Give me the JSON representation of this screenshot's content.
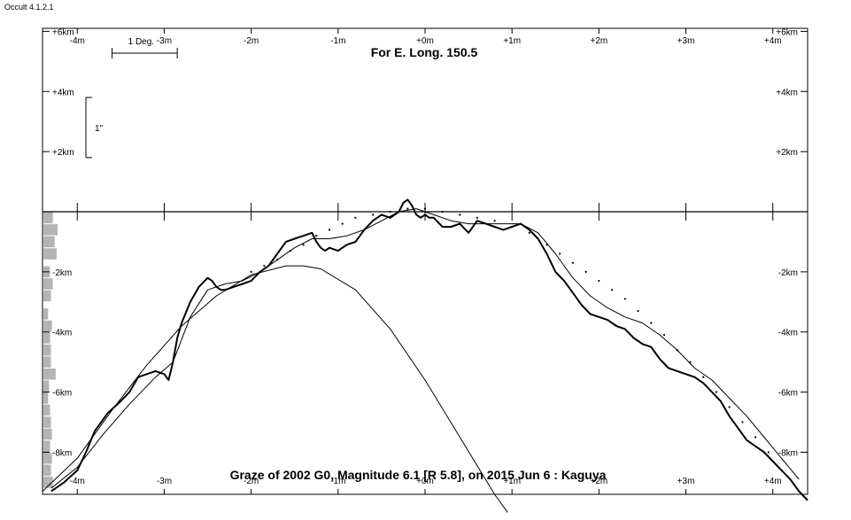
{
  "app": {
    "title": "Occult 4.1.2.1"
  },
  "chart_data": {
    "type": "line",
    "title": "For E. Long. 150.5",
    "caption": "Graze of  2002 G0,  Magnitude 6.1 [R 5.8],  on 2015 Jun  6  :  Kaguya",
    "xlim": [
      -4.4,
      4.4
    ],
    "ylim": [
      -9.4,
      6.1
    ],
    "x_unit": "m",
    "y_unit": "km",
    "x_ticks": [
      "-4m",
      "-3m",
      "-2m",
      "-1m",
      "+0m",
      "+1m",
      "+2m",
      "+3m",
      "+4m"
    ],
    "x_tick_values": [
      -4,
      -3,
      -2,
      -1,
      0,
      1,
      2,
      3,
      4
    ],
    "y_ticks": [
      "+6km",
      "+4km",
      "+2km",
      "-2km",
      "-4km",
      "-6km",
      "-8km"
    ],
    "y_tick_values": [
      6,
      4,
      2,
      -2,
      -4,
      -6,
      -8
    ],
    "scale_bar_label": "1 Deg.",
    "scale_bar_x": [
      -3.6,
      -2.85
    ],
    "vertical_scale_label": "1\"",
    "vertical_scale_y": [
      1.8,
      3.8
    ],
    "series": [
      {
        "style": "profile",
        "x": [
          -4.3,
          -4.15,
          -4.0,
          -3.9,
          -3.8,
          -3.65,
          -3.5,
          -3.4,
          -3.3,
          -3.2,
          -3.1,
          -3.0,
          -2.95,
          -2.9,
          -2.85,
          -2.8,
          -2.7,
          -2.6,
          -2.5,
          -2.45,
          -2.4,
          -2.35,
          -2.3,
          -2.2,
          -2.1,
          -2.0,
          -1.9,
          -1.8,
          -1.7,
          -1.6,
          -1.5,
          -1.4,
          -1.3,
          -1.25,
          -1.2,
          -1.15,
          -1.1,
          -1.0,
          -0.9,
          -0.8,
          -0.7,
          -0.6,
          -0.5,
          -0.4,
          -0.3,
          -0.25,
          -0.2,
          -0.15,
          -0.1,
          -0.05,
          0.0,
          0.05,
          0.1,
          0.2,
          0.3,
          0.4,
          0.5,
          0.6,
          0.7,
          0.8,
          0.9,
          1.0,
          1.1,
          1.2,
          1.3,
          1.4,
          1.5,
          1.6,
          1.7,
          1.8,
          1.9,
          2.0,
          2.1,
          2.2,
          2.3,
          2.4,
          2.5,
          2.6,
          2.65,
          2.7,
          2.8,
          2.9,
          3.0,
          3.1,
          3.2,
          3.3,
          3.4,
          3.5,
          3.6,
          3.7,
          3.8,
          3.9,
          4.0,
          4.1,
          4.2,
          4.3,
          4.4
        ],
        "y": [
          -9.3,
          -9.0,
          -8.6,
          -8.0,
          -7.3,
          -6.7,
          -6.3,
          -6.0,
          -5.5,
          -5.4,
          -5.3,
          -5.4,
          -5.6,
          -5.0,
          -4.2,
          -3.7,
          -3.0,
          -2.5,
          -2.2,
          -2.3,
          -2.5,
          -2.6,
          -2.6,
          -2.5,
          -2.4,
          -2.3,
          -2.0,
          -1.8,
          -1.4,
          -1.0,
          -0.9,
          -0.8,
          -0.7,
          -1.0,
          -1.2,
          -1.3,
          -1.2,
          -1.3,
          -1.1,
          -1.0,
          -0.6,
          -0.3,
          -0.1,
          -0.2,
          0.0,
          0.3,
          0.4,
          0.2,
          -0.1,
          -0.2,
          -0.1,
          -0.2,
          -0.2,
          -0.5,
          -0.5,
          -0.4,
          -0.7,
          -0.3,
          -0.4,
          -0.5,
          -0.6,
          -0.5,
          -0.4,
          -0.6,
          -0.9,
          -1.4,
          -2.0,
          -2.3,
          -2.7,
          -3.1,
          -3.4,
          -3.5,
          -3.6,
          -3.8,
          -3.9,
          -4.2,
          -4.4,
          -4.5,
          -4.7,
          -4.9,
          -5.2,
          -5.3,
          -5.4,
          -5.5,
          -5.7,
          -6.0,
          -6.3,
          -6.8,
          -7.2,
          -7.6,
          -7.8,
          -8.0,
          -8.3,
          -8.6,
          -8.9,
          -9.3,
          -9.6
        ]
      },
      {
        "style": "smooth-limb",
        "x": [
          -4.3,
          -4.0,
          -3.7,
          -3.4,
          -3.1,
          -2.9,
          -2.7,
          -2.5,
          -2.3,
          -2.1,
          -1.9,
          -1.7,
          -1.5,
          -1.3,
          -1.1,
          -0.9,
          -0.7,
          -0.5,
          -0.3,
          -0.1,
          0.1,
          0.3,
          0.5,
          0.7,
          0.9,
          1.1,
          1.3,
          1.5,
          1.7,
          1.9,
          2.1,
          2.3,
          2.5,
          2.7,
          2.9,
          3.1,
          3.3,
          3.5,
          3.7,
          3.9,
          4.1,
          4.3
        ],
        "y": [
          -9.2,
          -8.5,
          -7.4,
          -6.4,
          -5.5,
          -5.0,
          -3.5,
          -2.6,
          -2.4,
          -2.3,
          -2.0,
          -1.6,
          -1.2,
          -0.9,
          -0.9,
          -0.8,
          -0.6,
          -0.3,
          0.0,
          0.1,
          -0.1,
          -0.3,
          -0.4,
          -0.4,
          -0.4,
          -0.4,
          -0.7,
          -1.4,
          -2.2,
          -2.8,
          -3.2,
          -3.5,
          -3.7,
          -4.1,
          -4.6,
          -5.2,
          -5.6,
          -6.2,
          -6.8,
          -7.5,
          -8.2,
          -8.9
        ]
      },
      {
        "style": "path-curve",
        "x": [
          -4.4,
          -4.0,
          -3.6,
          -3.2,
          -2.8,
          -2.4,
          -2.0,
          -1.6,
          -1.4,
          -1.2,
          -0.8,
          -0.4,
          0.0,
          0.4,
          0.8,
          0.95
        ],
        "y": [
          -9.3,
          -8.2,
          -6.6,
          -5.1,
          -3.8,
          -2.8,
          -2.1,
          -1.8,
          -1.8,
          -1.9,
          -2.6,
          -3.9,
          -5.6,
          -7.5,
          -9.4,
          -10.0
        ]
      },
      {
        "style": "dotted-limb",
        "x": [
          -2.0,
          -1.85,
          -1.7,
          -1.55,
          -1.4,
          -1.25,
          -1.1,
          -0.95,
          -0.8,
          -0.6,
          -0.4,
          -0.2,
          0.0,
          0.2,
          0.4,
          0.6,
          0.8,
          1.0,
          1.2,
          1.4,
          1.55,
          1.7,
          1.85,
          2.0,
          2.15,
          2.3,
          2.45,
          2.6,
          2.75,
          2.9,
          3.05,
          3.2,
          3.35,
          3.5,
          3.65,
          3.8,
          3.95,
          4.1
        ],
        "y": [
          -2.0,
          -1.8,
          -1.6,
          -1.3,
          -1.1,
          -0.8,
          -0.6,
          -0.4,
          -0.2,
          -0.1,
          0.0,
          0.1,
          0.1,
          0.0,
          -0.1,
          -0.2,
          -0.3,
          -0.5,
          -0.7,
          -1.1,
          -1.4,
          -1.7,
          -2.0,
          -2.3,
          -2.6,
          -2.9,
          -3.3,
          -3.7,
          -4.1,
          -4.6,
          -5.0,
          -5.5,
          -6.0,
          -6.5,
          -7.0,
          -7.5,
          -8.0,
          -8.6
        ]
      }
    ],
    "histogram": {
      "orientation": "horizontal",
      "y": [
        -0.2,
        -0.6,
        -1.0,
        -1.4,
        -2.0,
        -2.4,
        -2.8,
        -3.4,
        -3.8,
        -4.2,
        -4.6,
        -5.0,
        -5.4,
        -5.8,
        -6.2,
        -6.6,
        -7.0,
        -7.4,
        -7.8,
        -8.2,
        -8.6,
        -9.0
      ],
      "values": [
        1.0,
        1.5,
        1.2,
        1.4,
        0.7,
        1.0,
        0.8,
        0.5,
        0.9,
        0.7,
        0.8,
        0.8,
        1.3,
        0.6,
        0.5,
        0.7,
        0.8,
        0.9,
        0.7,
        0.9,
        0.8,
        1.0
      ]
    }
  }
}
